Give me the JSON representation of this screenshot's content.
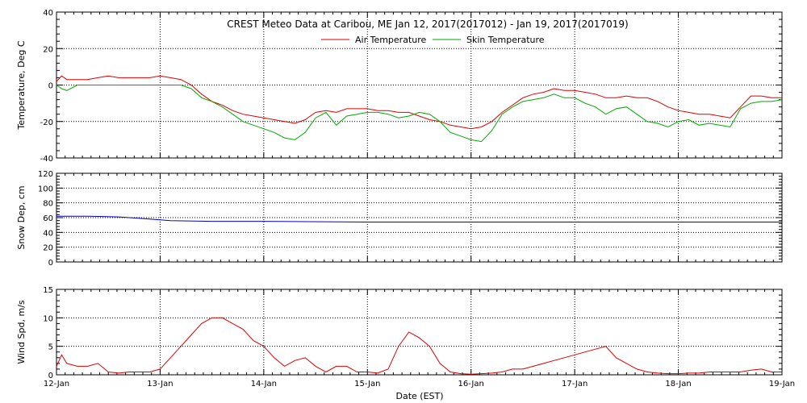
{
  "title": "CREST Meteo Data at Caribou, ME   Jan 12, 2017(2017012) - Jan 19, 2017(2017019)",
  "xlabel": "Date (EST)",
  "x_tick_labels": [
    "12-Jan",
    "13-Jan",
    "14-Jan",
    "15-Jan",
    "16-Jan",
    "17-Jan",
    "18-Jan",
    "19-Jan"
  ],
  "colors": {
    "air": "#dd0000",
    "skin": "#00aa00",
    "snow": "#0000cc",
    "wind": "#dd0000"
  },
  "chart_data": [
    {
      "type": "line",
      "ylabel": "Temperature, Deg C",
      "ylim": [
        -40,
        40
      ],
      "yticks": [
        -40,
        -20,
        0,
        20,
        40
      ],
      "x_unit": "days since 12-Jan 00:00",
      "xlim": [
        0,
        7
      ],
      "grid": true,
      "legend_position": "top-center",
      "series": [
        {
          "name": "Air Temperature",
          "x": [
            0,
            0.05,
            0.1,
            0.2,
            0.3,
            0.4,
            0.5,
            0.6,
            0.7,
            0.8,
            0.9,
            1.0,
            1.1,
            1.2,
            1.3,
            1.4,
            1.5,
            1.6,
            1.7,
            1.8,
            1.9,
            2.0,
            2.1,
            2.2,
            2.3,
            2.4,
            2.5,
            2.6,
            2.7,
            2.8,
            2.9,
            3.0,
            3.1,
            3.2,
            3.3,
            3.4,
            3.5,
            3.6,
            3.7,
            3.8,
            3.9,
            4.0,
            4.1,
            4.2,
            4.3,
            4.4,
            4.5,
            4.6,
            4.7,
            4.8,
            4.9,
            5.0,
            5.1,
            5.2,
            5.3,
            5.4,
            5.5,
            5.6,
            5.7,
            5.8,
            5.9,
            6.0,
            6.1,
            6.2,
            6.3,
            6.4,
            6.5,
            6.6,
            6.7,
            6.8,
            6.9,
            7.0
          ],
          "y": [
            2,
            5,
            3,
            3,
            3,
            4,
            5,
            4,
            4,
            4,
            4,
            5,
            4,
            3,
            0,
            -5,
            -9,
            -11,
            -14,
            -16,
            -17,
            -18,
            -19,
            -20,
            -21,
            -19,
            -15,
            -14,
            -15,
            -13,
            -13,
            -13,
            -14,
            -14,
            -15,
            -15,
            -17,
            -19,
            -20,
            -22,
            -23,
            -24,
            -23,
            -20,
            -15,
            -11,
            -7,
            -5,
            -4,
            -2,
            -3,
            -3,
            -4,
            -5,
            -7,
            -7,
            -6,
            -7,
            -7,
            -9,
            -12,
            -14,
            -15,
            -16,
            -16,
            -17,
            -18,
            -12,
            -6,
            -6,
            -7,
            -7
          ]
        },
        {
          "name": "Skin Temperature",
          "x": [
            0,
            0.05,
            0.1,
            0.2,
            0.3,
            0.4,
            0.5,
            0.6,
            0.7,
            0.8,
            0.9,
            1.0,
            1.1,
            1.2,
            1.3,
            1.4,
            1.5,
            1.6,
            1.7,
            1.8,
            1.9,
            2.0,
            2.1,
            2.2,
            2.3,
            2.4,
            2.5,
            2.6,
            2.7,
            2.8,
            2.9,
            3.0,
            3.1,
            3.2,
            3.3,
            3.4,
            3.5,
            3.6,
            3.7,
            3.8,
            3.9,
            4.0,
            4.1,
            4.2,
            4.3,
            4.4,
            4.5,
            4.6,
            4.7,
            4.8,
            4.9,
            5.0,
            5.1,
            5.2,
            5.3,
            5.4,
            5.5,
            5.6,
            5.7,
            5.8,
            5.9,
            6.0,
            6.1,
            6.2,
            6.3,
            6.4,
            6.5,
            6.6,
            6.7,
            6.8,
            6.9,
            7.0
          ],
          "y": [
            0,
            -2,
            -3,
            0,
            0,
            0,
            0,
            0,
            0,
            0,
            0,
            0,
            0,
            0,
            -2,
            -7,
            -9,
            -12,
            -16,
            -20,
            -22,
            -24,
            -26,
            -29,
            -30,
            -26,
            -18,
            -15,
            -22,
            -17,
            -16,
            -15,
            -15,
            -16,
            -18,
            -17,
            -15,
            -16,
            -20,
            -26,
            -28,
            -30,
            -31,
            -25,
            -16,
            -12,
            -9,
            -8,
            -7,
            -5,
            -7,
            -7,
            -10,
            -12,
            -16,
            -13,
            -12,
            -16,
            -20,
            -21,
            -23,
            -20,
            -19,
            -22,
            -21,
            -22,
            -23,
            -13,
            -10,
            -9,
            -9,
            -8
          ]
        }
      ]
    },
    {
      "type": "line",
      "ylabel": "Snow Dep, cm",
      "ylim": [
        0,
        120
      ],
      "yticks": [
        0,
        20,
        40,
        60,
        80,
        100,
        120
      ],
      "x_unit": "days since 12-Jan 00:00",
      "xlim": [
        0,
        7
      ],
      "grid": true,
      "series": [
        {
          "name": "",
          "x": [
            0,
            0.3,
            0.6,
            0.8,
            1.0,
            1.1,
            1.5,
            2.0,
            3.0,
            4.0,
            5.0,
            6.0,
            7.0
          ],
          "y": [
            62,
            62,
            61,
            59,
            57,
            56,
            55,
            55,
            54,
            54,
            54,
            54,
            54
          ]
        }
      ]
    },
    {
      "type": "line",
      "ylabel": "Wind Spd, m/s",
      "ylim": [
        0,
        15
      ],
      "yticks": [
        0,
        5,
        10,
        15
      ],
      "x_unit": "days since 12-Jan 00:00",
      "xlim": [
        0,
        7
      ],
      "grid": true,
      "series": [
        {
          "name": "",
          "x": [
            0,
            0.05,
            0.1,
            0.2,
            0.3,
            0.4,
            0.5,
            0.6,
            0.7,
            0.8,
            0.9,
            1.0,
            1.1,
            1.2,
            1.3,
            1.4,
            1.5,
            1.6,
            1.7,
            1.8,
            1.9,
            2.0,
            2.1,
            2.2,
            2.3,
            2.4,
            2.5,
            2.6,
            2.7,
            2.8,
            2.9,
            3.0,
            3.1,
            3.2,
            3.3,
            3.4,
            3.5,
            3.6,
            3.7,
            3.8,
            3.9,
            4.0,
            4.1,
            4.2,
            4.3,
            4.4,
            4.5,
            4.6,
            4.7,
            4.8,
            4.9,
            5.0,
            5.1,
            5.2,
            5.3,
            5.4,
            5.5,
            5.6,
            5.7,
            5.8,
            5.9,
            6.0,
            6.1,
            6.2,
            6.3,
            6.4,
            6.5,
            6.6,
            6.7,
            6.8,
            6.9,
            7.0
          ],
          "y": [
            1.5,
            3.5,
            2,
            1.5,
            1.5,
            2,
            0.5,
            0.3,
            0.5,
            0.5,
            0.5,
            1,
            3,
            5,
            7,
            9,
            10,
            10,
            9,
            8,
            6,
            5,
            3,
            1.5,
            2.5,
            3,
            1.5,
            0.5,
            1.5,
            1.5,
            0.5,
            0.5,
            0.3,
            1,
            5,
            7.5,
            6.5,
            5,
            2,
            0.5,
            0.2,
            0.1,
            0.2,
            0.3,
            0.5,
            1,
            1,
            1.5,
            2,
            2.5,
            3,
            3.5,
            4,
            4.5,
            5,
            3,
            2,
            1,
            0.5,
            0.3,
            0.2,
            0.2,
            0.3,
            0.3,
            0.5,
            0.5,
            0.5,
            0.5,
            0.8,
            1,
            0.5,
            0.5
          ]
        }
      ]
    }
  ]
}
